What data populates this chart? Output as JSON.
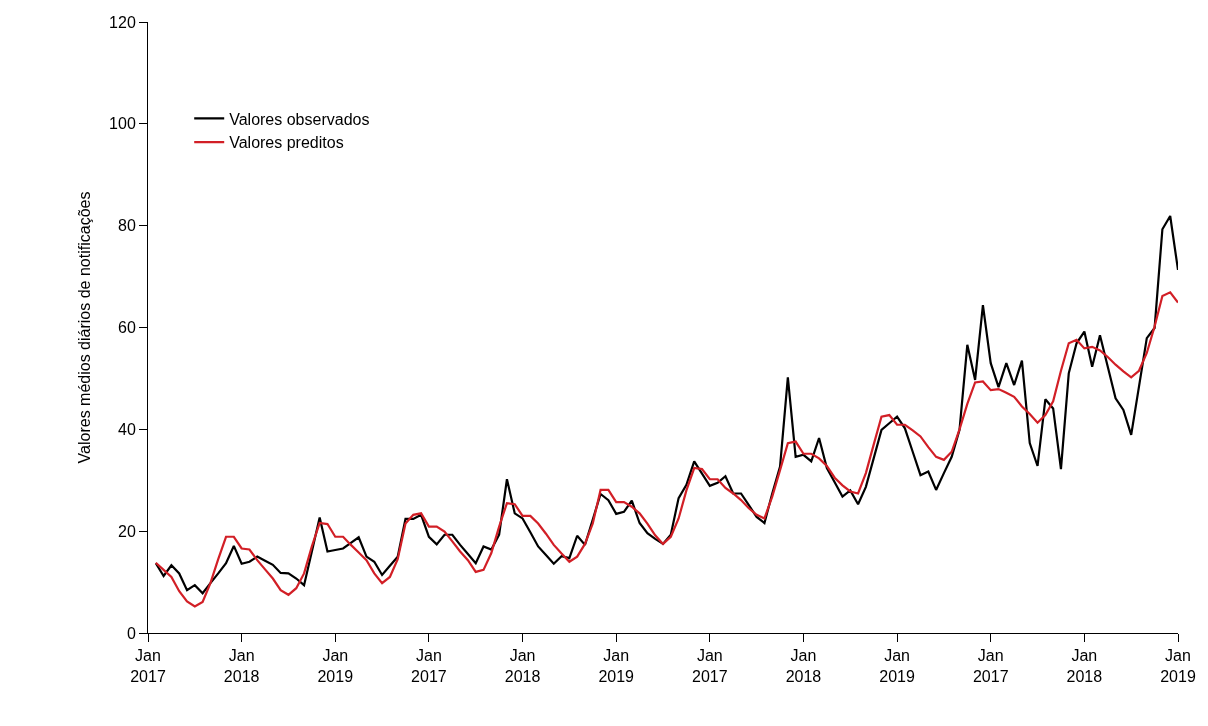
{
  "chart_data": {
    "type": "line",
    "ylabel": "Valores médios diários de notificações",
    "ylim": [
      0,
      120
    ],
    "yticks": [
      0,
      20,
      40,
      60,
      80,
      100,
      120
    ],
    "categories": [
      "Jan\n2017",
      null,
      null,
      null,
      null,
      null,
      null,
      null,
      null,
      null,
      null,
      null,
      "Jan\n2018",
      null,
      null,
      null,
      null,
      null,
      null,
      null,
      null,
      null,
      null,
      null,
      "Jan\n2019",
      null,
      null,
      null,
      null,
      null,
      null,
      null,
      null,
      null,
      null,
      null,
      "Jan\n2017",
      null,
      null,
      null,
      null,
      null,
      null,
      null,
      null,
      null,
      null,
      null,
      "Jan\n2018",
      null,
      null,
      null,
      null,
      null,
      null,
      null,
      null,
      null,
      null,
      null,
      "Jan\n2019",
      null,
      null,
      null,
      null,
      null,
      null,
      null,
      null,
      null,
      null,
      null,
      "Jan\n2017",
      null,
      null,
      null,
      null,
      null,
      null,
      null,
      null,
      null,
      null,
      null,
      "Jan\n2018",
      null,
      null,
      null,
      null,
      null,
      null,
      null,
      null,
      null,
      null,
      null,
      "Jan\n2019",
      null,
      null,
      null,
      null,
      null,
      null,
      null,
      null,
      null,
      null,
      null,
      "Jan\n2017",
      null,
      null,
      null,
      null,
      null,
      null,
      null,
      null,
      null,
      null,
      null,
      "Jan\n2018",
      null,
      null,
      null,
      null,
      null,
      null,
      null,
      null,
      null,
      null,
      null,
      "Jan\n2019"
    ],
    "grid": false,
    "legend": "top left",
    "marker": "none",
    "line_style": "solid",
    "series": [
      {
        "name": "Valores observados",
        "color": "#000000",
        "values": [
          null,
          13.7,
          11.2,
          13.3,
          11.7,
          8.4,
          9.4,
          7.8,
          9.8,
          11.7,
          13.7,
          17.1,
          13.6,
          14.0,
          15.0,
          14.2,
          13.4,
          11.8,
          11.7,
          10.7,
          9.4,
          16.0,
          22.7,
          16.0,
          16.3,
          16.6,
          17.7,
          18.8,
          15.0,
          14.0,
          11.4,
          13.2,
          15.0,
          22.4,
          22.4,
          23.2,
          18.9,
          17.4,
          19.3,
          19.3,
          17.3,
          15.5,
          13.7,
          17.0,
          16.4,
          19.3,
          30.2,
          23.5,
          22.5,
          19.8,
          17.0,
          15.3,
          13.6,
          15.1,
          14.7,
          19.1,
          17.3,
          22.3,
          27.3,
          26.1,
          23.4,
          23.8,
          26.0,
          21.6,
          19.6,
          18.5,
          17.5,
          19.3,
          26.5,
          29.1,
          33.7,
          31.3,
          28.9,
          29.5,
          30.8,
          27.4,
          27.4,
          25.1,
          22.8,
          21.6,
          27.4,
          32.7,
          50.2,
          34.6,
          35.0,
          33.7,
          38.3,
          32.4,
          29.6,
          26.8,
          28.0,
          25.3,
          28.7,
          34.3,
          39.9,
          41.2,
          42.5,
          40.2,
          35.6,
          31.0,
          31.7,
          28.1,
          31.4,
          34.6,
          39.9,
          56.6,
          49.7,
          64.4,
          53.0,
          48.3,
          53.0,
          48.7,
          53.5,
          37.3,
          32.8,
          45.9,
          44.1,
          32.2,
          51.0,
          56.9,
          59.2,
          52.3,
          58.5,
          52.3,
          46.1,
          43.8,
          38.9,
          48.4,
          57.9,
          59.9,
          79.3,
          81.9,
          71.3
        ]
      },
      {
        "name": "Valores preditos",
        "color": "#d21f26",
        "values": [
          null,
          13.8,
          12.4,
          11.0,
          8.2,
          6.2,
          5.2,
          6.1,
          9.8,
          14.5,
          18.9,
          18.9,
          16.6,
          16.4,
          14.3,
          12.5,
          10.7,
          8.4,
          7.5,
          8.8,
          11.7,
          17.0,
          21.6,
          21.4,
          18.9,
          18.9,
          17.3,
          15.8,
          14.3,
          11.7,
          9.8,
          11.0,
          14.5,
          21.5,
          23.2,
          23.5,
          20.9,
          20.9,
          19.9,
          18.0,
          16.0,
          14.3,
          12.0,
          12.4,
          15.7,
          20.9,
          25.5,
          25.3,
          23.0,
          23.0,
          21.5,
          19.5,
          17.3,
          15.6,
          14.0,
          15.0,
          17.5,
          21.5,
          28.1,
          28.1,
          25.7,
          25.7,
          24.8,
          23.5,
          21.5,
          19.2,
          17.5,
          18.9,
          22.5,
          28.0,
          32.4,
          32.2,
          30.2,
          30.2,
          28.5,
          27.4,
          26.1,
          24.5,
          23.2,
          22.5,
          26.8,
          32.0,
          37.3,
          37.6,
          35.2,
          35.2,
          34.3,
          32.8,
          30.5,
          29.0,
          27.8,
          27.4,
          31.4,
          37.0,
          42.5,
          42.8,
          40.9,
          40.9,
          39.8,
          38.6,
          36.5,
          34.6,
          34.0,
          35.6,
          40.0,
          45.0,
          49.2,
          49.4,
          47.7,
          47.9,
          47.2,
          46.4,
          44.5,
          43.0,
          41.3,
          42.8,
          45.5,
          51.5,
          56.9,
          57.6,
          55.9,
          56.2,
          55.5,
          54.2,
          52.7,
          51.4,
          50.2,
          51.5,
          55.0,
          60.2,
          66.2,
          66.9,
          64.9
        ]
      }
    ]
  }
}
